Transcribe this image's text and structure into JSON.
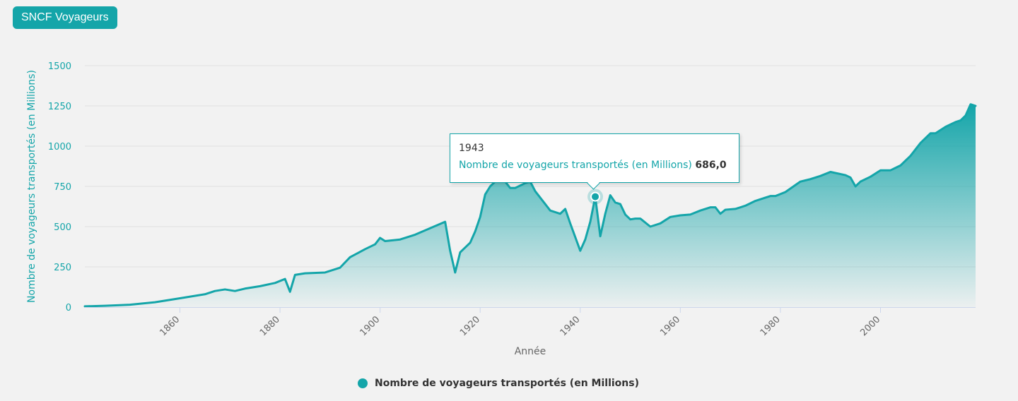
{
  "header": {
    "badge_label": "SNCF Voyageurs"
  },
  "colors": {
    "accent": "#14a5a9",
    "grid": "#e0e0e0",
    "text": "#333333"
  },
  "tooltip": {
    "year": "1943",
    "series_label": "Nombre de voyageurs transportés (en Millions)",
    "value_label": "686,0"
  },
  "legend": {
    "label": "Nombre de voyageurs transportés (en Millions)",
    "marker_icon": "circle-marker"
  },
  "chart_data": {
    "type": "area",
    "xlabel": "Année",
    "ylabel": "Nombre de voyageurs transportés (en Millions)",
    "xlim": [
      1841,
      2019
    ],
    "ylim": [
      0,
      1500
    ],
    "y_ticks": [
      0,
      250,
      500,
      750,
      1000,
      1250,
      1500
    ],
    "y_tick_labels": [
      "0",
      "250",
      "500",
      "750",
      "1000",
      "1250",
      "1500"
    ],
    "x_ticks": [
      1860,
      1880,
      1900,
      1920,
      1940,
      1960,
      1980,
      2000
    ],
    "x_tick_labels": [
      "1860",
      "1880",
      "1900",
      "1920",
      "1940",
      "1960",
      "1980",
      "2000"
    ],
    "grid": "horizontal",
    "legend_position": "bottom-center",
    "highlighted_point": {
      "x": 1943,
      "y": 686
    },
    "series": [
      {
        "name": "Nombre de voyageurs transportés (en Millions)",
        "x": [
          1841,
          1845,
          1848,
          1850,
          1855,
          1860,
          1865,
          1867,
          1869,
          1871,
          1873,
          1876,
          1879,
          1881,
          1882,
          1883,
          1885,
          1889,
          1892,
          1894,
          1897,
          1899,
          1900,
          1901,
          1904,
          1907,
          1910,
          1913,
          1914,
          1915,
          1916,
          1918,
          1919,
          1920,
          1921,
          1922,
          1923,
          1925,
          1926,
          1927,
          1929,
          1930,
          1931,
          1932,
          1934,
          1936,
          1937,
          1938,
          1940,
          1941,
          1942,
          1943,
          1944,
          1945,
          1946,
          1947,
          1948,
          1949,
          1950,
          1951,
          1952,
          1954,
          1956,
          1958,
          1960,
          1962,
          1964,
          1966,
          1967,
          1968,
          1969,
          1971,
          1972,
          1973,
          1975,
          1977,
          1978,
          1979,
          1981,
          1984,
          1986,
          1988,
          1990,
          1993,
          1994,
          1995,
          1996,
          1998,
          2000,
          2002,
          2004,
          2006,
          2008,
          2010,
          2011,
          2013,
          2015,
          2016,
          2017,
          2018,
          2019
        ],
        "y": [
          5,
          8,
          12,
          15,
          30,
          55,
          80,
          100,
          110,
          100,
          115,
          130,
          150,
          175,
          95,
          200,
          210,
          215,
          245,
          310,
          360,
          390,
          430,
          410,
          420,
          450,
          490,
          530,
          350,
          215,
          340,
          400,
          470,
          560,
          700,
          750,
          780,
          780,
          740,
          740,
          770,
          780,
          720,
          680,
          600,
          580,
          610,
          520,
          350,
          420,
          530,
          686,
          440,
          580,
          695,
          650,
          640,
          575,
          545,
          550,
          550,
          500,
          520,
          560,
          570,
          575,
          600,
          620,
          620,
          580,
          605,
          610,
          620,
          630,
          660,
          680,
          690,
          690,
          715,
          780,
          795,
          815,
          840,
          820,
          805,
          750,
          780,
          810,
          850,
          850,
          880,
          940,
          1020,
          1080,
          1080,
          1120,
          1150,
          1160,
          1190,
          1260,
          1250
        ]
      }
    ]
  }
}
